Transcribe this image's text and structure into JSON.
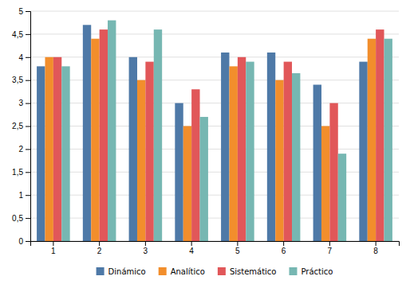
{
  "chart_data": {
    "type": "bar",
    "categories": [
      "1",
      "2",
      "3",
      "4",
      "5",
      "6",
      "7",
      "8"
    ],
    "series": [
      {
        "name": "Dinámico",
        "values": [
          3.8,
          4.7,
          4.0,
          3.0,
          4.1,
          4.1,
          3.4,
          3.9
        ]
      },
      {
        "name": "Analítico",
        "values": [
          4.0,
          4.4,
          3.5,
          2.5,
          3.8,
          3.5,
          2.5,
          4.4
        ]
      },
      {
        "name": "Sistemático",
        "values": [
          4.0,
          4.6,
          3.9,
          3.3,
          4.0,
          3.9,
          3.0,
          4.6
        ]
      },
      {
        "name": "Práctico",
        "values": [
          3.8,
          4.8,
          4.6,
          2.7,
          3.9,
          3.65,
          1.9,
          4.4
        ]
      }
    ],
    "ylim": [
      0,
      5
    ],
    "yticks": [
      0,
      {
        "value": 0.5,
        "label": "0,5"
      },
      1,
      {
        "value": 1.5,
        "label": "1,5"
      },
      2,
      {
        "value": 2.5,
        "label": "2,5"
      },
      3,
      {
        "value": 3.5,
        "label": "3,5"
      },
      4,
      {
        "value": 4.5,
        "label": "4,5"
      },
      5
    ],
    "grid": true,
    "legend": "bottom"
  }
}
